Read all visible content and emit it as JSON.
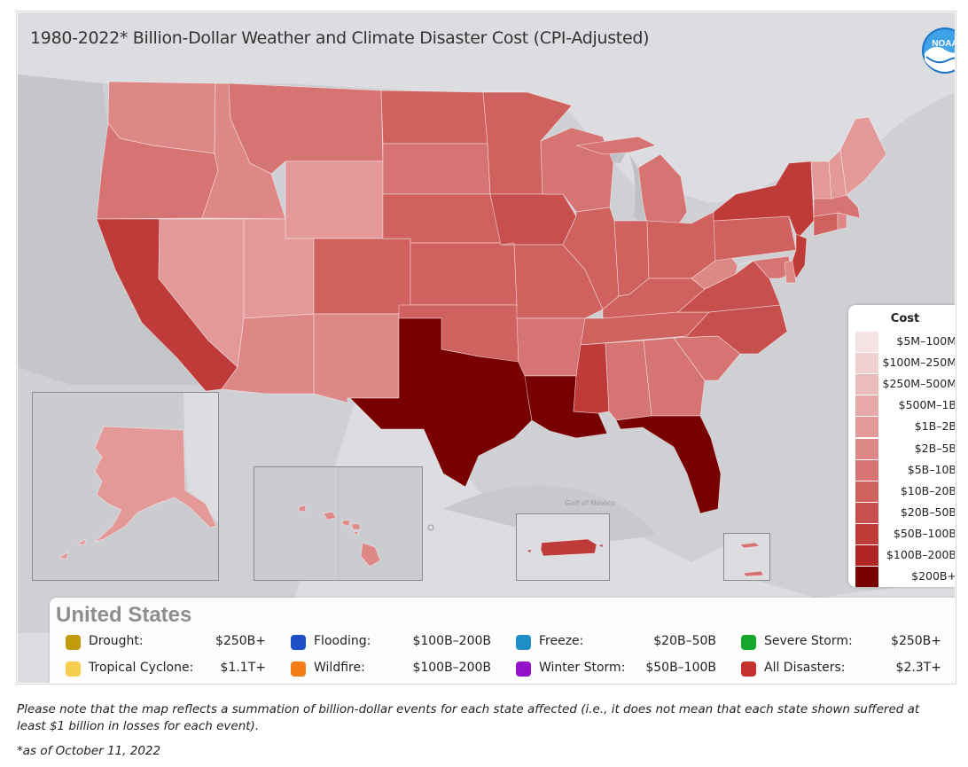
{
  "title": "1980-2022* Billion-Dollar Weather and Climate Disaster Cost (CPI-Adjusted)",
  "logo_text": "NOAA",
  "map_labels": {
    "gulf": "Gulf of Mexico"
  },
  "legend": {
    "title": "Cost",
    "items": [
      {
        "label": "$5M–100M",
        "color": "#f5e3e3"
      },
      {
        "label": "$100M–250M",
        "color": "#efd1d1"
      },
      {
        "label": "$250M–500M",
        "color": "#ebbcbc"
      },
      {
        "label": "$500M–1B",
        "color": "#e7a9a8"
      },
      {
        "label": "$1B–2B",
        "color": "#e29998"
      },
      {
        "label": "$2B–5B",
        "color": "#dd8886"
      },
      {
        "label": "$5B–10B",
        "color": "#d67473"
      },
      {
        "label": "$10B–20B",
        "color": "#cf615f"
      },
      {
        "label": "$20B–50B",
        "color": "#c74f4d"
      },
      {
        "label": "$50B–100B",
        "color": "#bf3b3a"
      },
      {
        "label": "$100B–200B",
        "color": "#b02523"
      },
      {
        "label": "$200B+",
        "color": "#780000"
      }
    ]
  },
  "region": "United States",
  "hazards": [
    {
      "name": "Drought:",
      "value": "$250B+",
      "color": "#c29b0c"
    },
    {
      "name": "Flooding:",
      "value": "$100B–200B",
      "color": "#1d4fc6"
    },
    {
      "name": "Freeze:",
      "value": "$20B–50B",
      "color": "#1f90c6"
    },
    {
      "name": "Severe Storm:",
      "value": "$250B+",
      "color": "#16a72d"
    },
    {
      "name": "Tropical Cyclone:",
      "value": "$1.1T+",
      "color": "#f7cf4f"
    },
    {
      "name": "Wildfire:",
      "value": "$100B–200B",
      "color": "#f37e16"
    },
    {
      "name": "Winter Storm:",
      "value": "$50B–100B",
      "color": "#9410c9"
    },
    {
      "name": "All Disasters:",
      "value": "$2.3T+",
      "color": "#c5312d"
    }
  ],
  "note": "Please note that the map reflects a summation of billion-dollar events for each state affected (i.e., it does not mean that each state shown suffered at least $1 billion in losses for each event).",
  "footnote": "*as of October 11, 2022",
  "states": [
    {
      "name": "Washington",
      "cost_bin": "$2B–5B"
    },
    {
      "name": "Oregon",
      "cost_bin": "$5B–10B"
    },
    {
      "name": "California",
      "cost_bin": "$100B–200B"
    },
    {
      "name": "Idaho",
      "cost_bin": "$2B–5B"
    },
    {
      "name": "Nevada",
      "cost_bin": "$1B–2B"
    },
    {
      "name": "Montana",
      "cost_bin": "$5B–10B"
    },
    {
      "name": "Wyoming",
      "cost_bin": "$1B–2B"
    },
    {
      "name": "Utah",
      "cost_bin": "$1B–2B"
    },
    {
      "name": "Arizona",
      "cost_bin": "$2B–5B"
    },
    {
      "name": "Colorado",
      "cost_bin": "$10B–20B"
    },
    {
      "name": "New Mexico",
      "cost_bin": "$2B–5B"
    },
    {
      "name": "North Dakota",
      "cost_bin": "$10B–20B"
    },
    {
      "name": "South Dakota",
      "cost_bin": "$5B–10B"
    },
    {
      "name": "Nebraska",
      "cost_bin": "$10B–20B"
    },
    {
      "name": "Kansas",
      "cost_bin": "$10B–20B"
    },
    {
      "name": "Oklahoma",
      "cost_bin": "$10B–20B"
    },
    {
      "name": "Texas",
      "cost_bin": "$200B+"
    },
    {
      "name": "Minnesota",
      "cost_bin": "$10B–20B"
    },
    {
      "name": "Iowa",
      "cost_bin": "$20B–50B"
    },
    {
      "name": "Missouri",
      "cost_bin": "$10B–20B"
    },
    {
      "name": "Arkansas",
      "cost_bin": "$5B–10B"
    },
    {
      "name": "Louisiana",
      "cost_bin": "$200B+"
    },
    {
      "name": "Wisconsin",
      "cost_bin": "$5B–10B"
    },
    {
      "name": "Illinois",
      "cost_bin": "$10B–20B"
    },
    {
      "name": "Michigan",
      "cost_bin": "$5B–10B"
    },
    {
      "name": "Indiana",
      "cost_bin": "$10B–20B"
    },
    {
      "name": "Ohio",
      "cost_bin": "$10B–20B"
    },
    {
      "name": "Kentucky",
      "cost_bin": "$10B–20B"
    },
    {
      "name": "Tennessee",
      "cost_bin": "$10B–20B"
    },
    {
      "name": "Mississippi",
      "cost_bin": "$50B–100B"
    },
    {
      "name": "Alabama",
      "cost_bin": "$10B–20B"
    },
    {
      "name": "Georgia",
      "cost_bin": "$10B–20B"
    },
    {
      "name": "Florida",
      "cost_bin": "$200B+"
    },
    {
      "name": "South Carolina",
      "cost_bin": "$10B–20B"
    },
    {
      "name": "North Carolina",
      "cost_bin": "$20B–50B"
    },
    {
      "name": "Virginia",
      "cost_bin": "$20B–50B"
    },
    {
      "name": "West Virginia",
      "cost_bin": "$2B–5B"
    },
    {
      "name": "Pennsylvania",
      "cost_bin": "$10B–20B"
    },
    {
      "name": "New York",
      "cost_bin": "$50B–100B"
    },
    {
      "name": "New Jersey",
      "cost_bin": "$50B–100B"
    },
    {
      "name": "Maryland",
      "cost_bin": "$5B–10B"
    },
    {
      "name": "Delaware",
      "cost_bin": "$2B–5B"
    },
    {
      "name": "Connecticut",
      "cost_bin": "$10B–20B"
    },
    {
      "name": "Massachusetts",
      "cost_bin": "$5B–10B"
    },
    {
      "name": "Rhode Island",
      "cost_bin": "$2B–5B"
    },
    {
      "name": "Vermont",
      "cost_bin": "$1B–2B"
    },
    {
      "name": "New Hampshire",
      "cost_bin": "$1B–2B"
    },
    {
      "name": "Maine",
      "cost_bin": "$1B–2B"
    },
    {
      "name": "Alaska",
      "cost_bin": "$1B–2B"
    },
    {
      "name": "Hawaii",
      "cost_bin": "$2B–5B"
    },
    {
      "name": "Puerto Rico",
      "cost_bin": "$50B–100B"
    },
    {
      "name": "U.S. Virgin Islands",
      "cost_bin": "$5B–10B"
    }
  ]
}
